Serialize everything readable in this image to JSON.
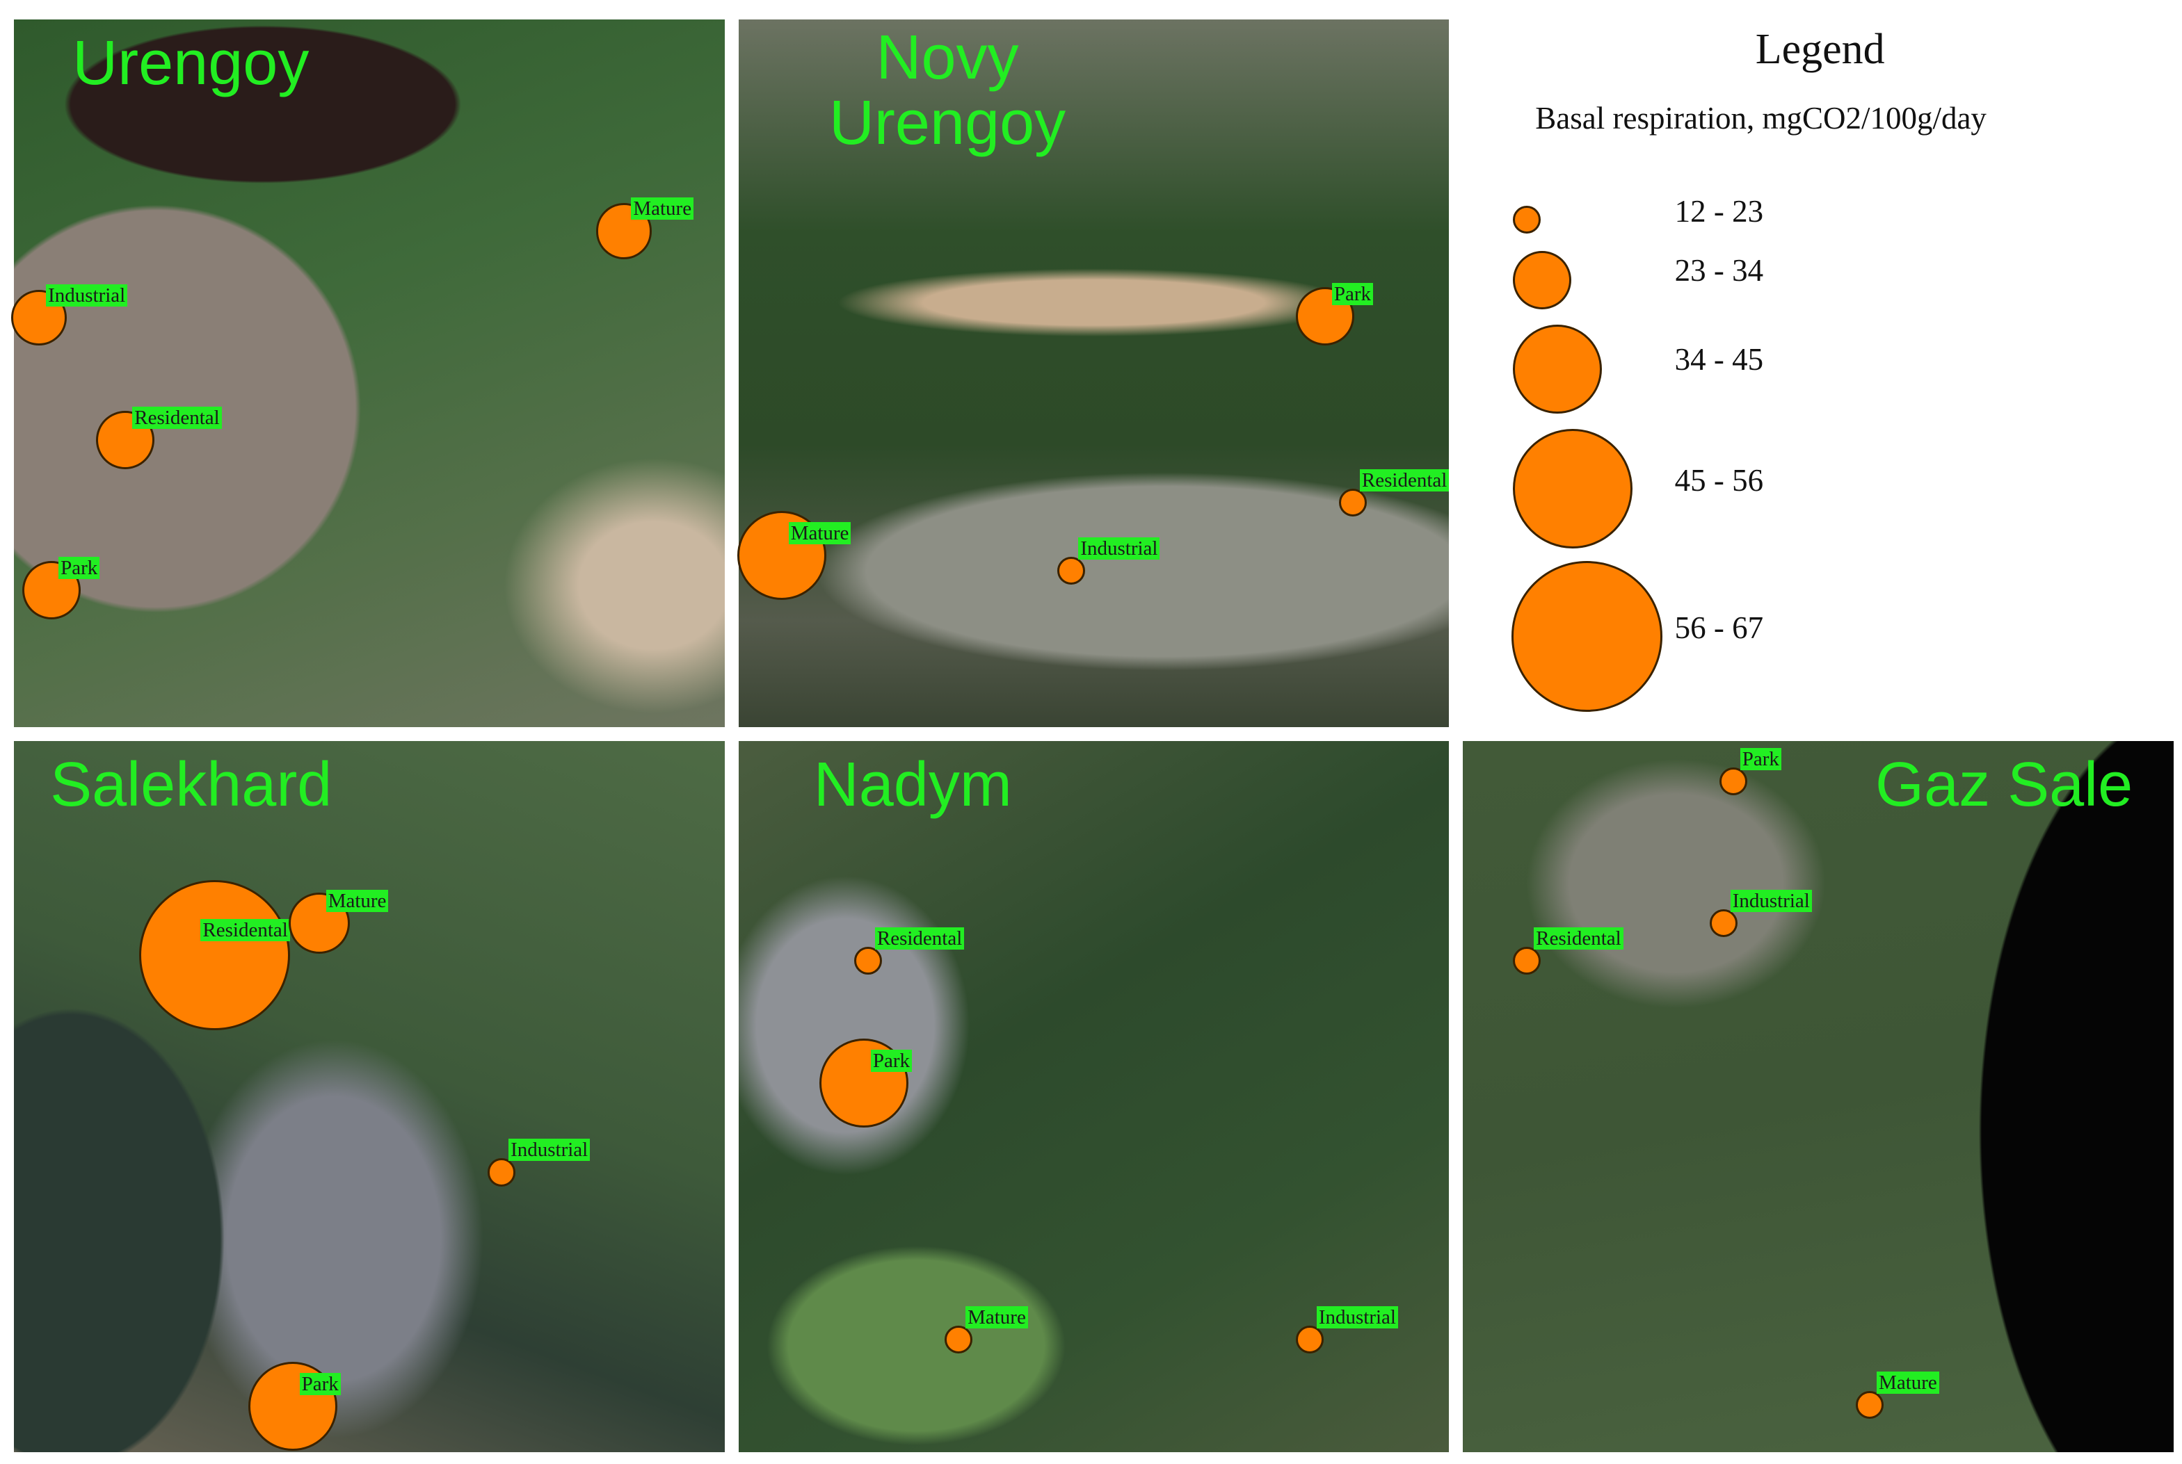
{
  "legend": {
    "title": "Legend",
    "subtitle": "Basal respiration, mgCO2/100g/day",
    "classes": [
      "12 - 23",
      "23 - 34",
      "34 - 45",
      "45 - 56",
      "56 - 67"
    ]
  },
  "panels": [
    {
      "name": "Urengoy",
      "sites": [
        "Mature",
        "Industrial",
        "Residental",
        "Park"
      ]
    },
    {
      "name": "Novy Urengoy",
      "sites": [
        "Park",
        "Residental",
        "Mature",
        "Industrial"
      ]
    },
    {
      "name": "Salekhard",
      "sites": [
        "Residental",
        "Mature",
        "Industrial",
        "Park"
      ]
    },
    {
      "name": "Nadym",
      "sites": [
        "Residental",
        "Park",
        "Mature",
        "Industrial"
      ]
    },
    {
      "name": "Gaz Sale",
      "sites": [
        "Park",
        "Industrial",
        "Residental",
        "Mature"
      ]
    }
  ]
}
